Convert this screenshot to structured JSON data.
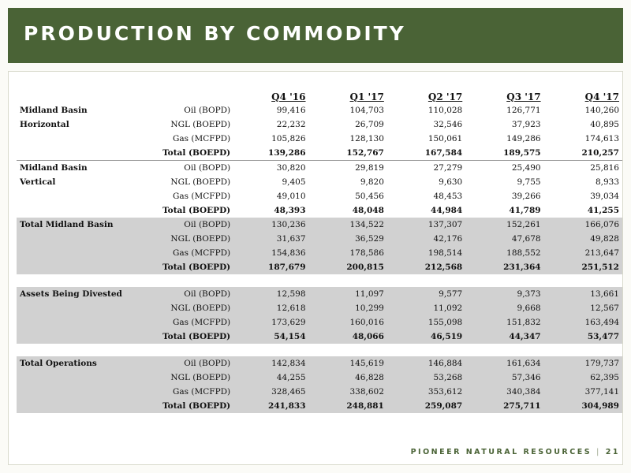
{
  "header": {
    "title": "PRODUCTION BY COMMODITY"
  },
  "table": {
    "columns": [
      "Q4 '16",
      "Q1 '17",
      "Q2 '17",
      "Q3 '17",
      "Q4 '17"
    ],
    "sections": [
      {
        "name_lines": [
          "Midland Basin",
          "Horizontal"
        ],
        "shaded": false,
        "rows": [
          {
            "label": "Oil (BOPD)",
            "values": [
              "99,416",
              "104,703",
              "110,028",
              "126,771",
              "140,260"
            ]
          },
          {
            "label": "NGL (BOEPD)",
            "values": [
              "22,232",
              "26,709",
              "32,546",
              "37,923",
              "40,895"
            ]
          },
          {
            "label": "Gas (MCFPD)",
            "values": [
              "105,826",
              "128,130",
              "150,061",
              "149,286",
              "174,613"
            ]
          },
          {
            "label": "Total (BOEPD)",
            "values": [
              "139,286",
              "152,767",
              "167,584",
              "189,575",
              "210,257"
            ],
            "total": true
          }
        ]
      },
      {
        "name_lines": [
          "Midland Basin",
          "Vertical"
        ],
        "shaded": false,
        "rows": [
          {
            "label": "Oil (BOPD)",
            "values": [
              "30,820",
              "29,819",
              "27,279",
              "25,490",
              "25,816"
            ]
          },
          {
            "label": "NGL (BOEPD)",
            "values": [
              "9,405",
              "9,820",
              "9,630",
              "9,755",
              "8,933"
            ]
          },
          {
            "label": "Gas (MCFPD)",
            "values": [
              "49,010",
              "50,456",
              "48,453",
              "39,266",
              "39,034"
            ]
          },
          {
            "label": "Total (BOEPD)",
            "values": [
              "48,393",
              "48,048",
              "44,984",
              "41,789",
              "41,255"
            ],
            "total": true
          }
        ]
      },
      {
        "name_lines": [
          "Total Midland Basin"
        ],
        "shaded": true,
        "rows": [
          {
            "label": "Oil (BOPD)",
            "values": [
              "130,236",
              "134,522",
              "137,307",
              "152,261",
              "166,076"
            ]
          },
          {
            "label": "NGL (BOEPD)",
            "values": [
              "31,637",
              "36,529",
              "42,176",
              "47,678",
              "49,828"
            ]
          },
          {
            "label": "Gas (MCFPD)",
            "values": [
              "154,836",
              "178,586",
              "198,514",
              "188,552",
              "213,647"
            ]
          },
          {
            "label": "Total (BOEPD)",
            "values": [
              "187,679",
              "200,815",
              "212,568",
              "231,364",
              "251,512"
            ],
            "total": true
          }
        ]
      },
      {
        "name_lines": [
          "Assets Being Divested"
        ],
        "shaded": true,
        "rows": [
          {
            "label": "Oil (BOPD)",
            "values": [
              "12,598",
              "11,097",
              "9,577",
              "9,373",
              "13,661"
            ]
          },
          {
            "label": "NGL (BOEPD)",
            "values": [
              "12,618",
              "10,299",
              "11,092",
              "9,668",
              "12,567"
            ]
          },
          {
            "label": "Gas (MCFPD)",
            "values": [
              "173,629",
              "160,016",
              "155,098",
              "151,832",
              "163,494"
            ]
          },
          {
            "label": "Total (BOEPD)",
            "values": [
              "54,154",
              "48,066",
              "46,519",
              "44,347",
              "53,477"
            ],
            "total": true
          }
        ]
      },
      {
        "name_lines": [
          "Total Operations"
        ],
        "shaded": true,
        "rows": [
          {
            "label": "Oil (BOPD)",
            "values": [
              "142,834",
              "145,619",
              "146,884",
              "161,634",
              "179,737"
            ]
          },
          {
            "label": "NGL (BOEPD)",
            "values": [
              "44,255",
              "46,828",
              "53,268",
              "57,346",
              "62,395"
            ]
          },
          {
            "label": "Gas (MCFPD)",
            "values": [
              "328,465",
              "338,602",
              "353,612",
              "340,384",
              "377,141"
            ]
          },
          {
            "label": "Total (BOEPD)",
            "values": [
              "241,833",
              "248,881",
              "259,087",
              "275,711",
              "304,989"
            ],
            "total": true
          }
        ]
      }
    ]
  },
  "footer": {
    "company": "PIONEER NATURAL RESOURCES",
    "separator": "|",
    "page_number": "21"
  },
  "colors": {
    "brand_green": "#4a6336",
    "row_shade": "#d1d1d1"
  }
}
